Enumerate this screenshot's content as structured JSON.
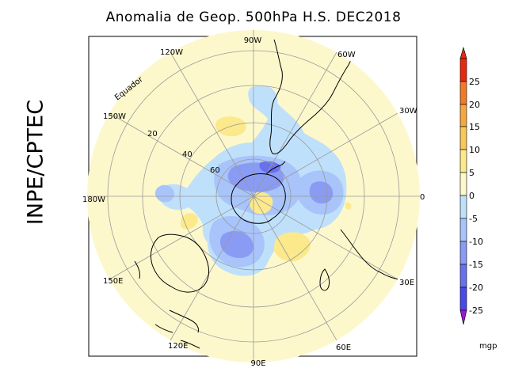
{
  "title": "Anomalia de Geop. 500hPa H.S. DEC2018",
  "agency": "INPE/CPTEC",
  "map": {
    "longitude_labels": [
      "90W",
      "60W",
      "30W",
      "0",
      "30E",
      "60E",
      "90E",
      "120E",
      "150E",
      "180W",
      "150W",
      "120W"
    ],
    "latitude_labels": [
      "Equador",
      "20",
      "40",
      "60"
    ]
  },
  "colorbar": {
    "levels": [
      "25",
      "20",
      "15",
      "10",
      "5",
      "0",
      "-5",
      "-10",
      "-15",
      "-20",
      "-25"
    ],
    "unit": "mgp",
    "colors": {
      "c25plus": "#e8280e",
      "c20_25": "#f07a2a",
      "c15_20": "#f5a840",
      "c10_15": "#f7c85a",
      "c5_10": "#fbe98c",
      "c0_5": "#fdf8cc",
      "cm5_0": "#bfe0fb",
      "cm10_m5": "#a8c4fa",
      "cm15_m10": "#8a9bf4",
      "cm20_m15": "#6870ee",
      "cm25_m20": "#4a48e8",
      "cbelow": "#9a18d0"
    }
  }
}
